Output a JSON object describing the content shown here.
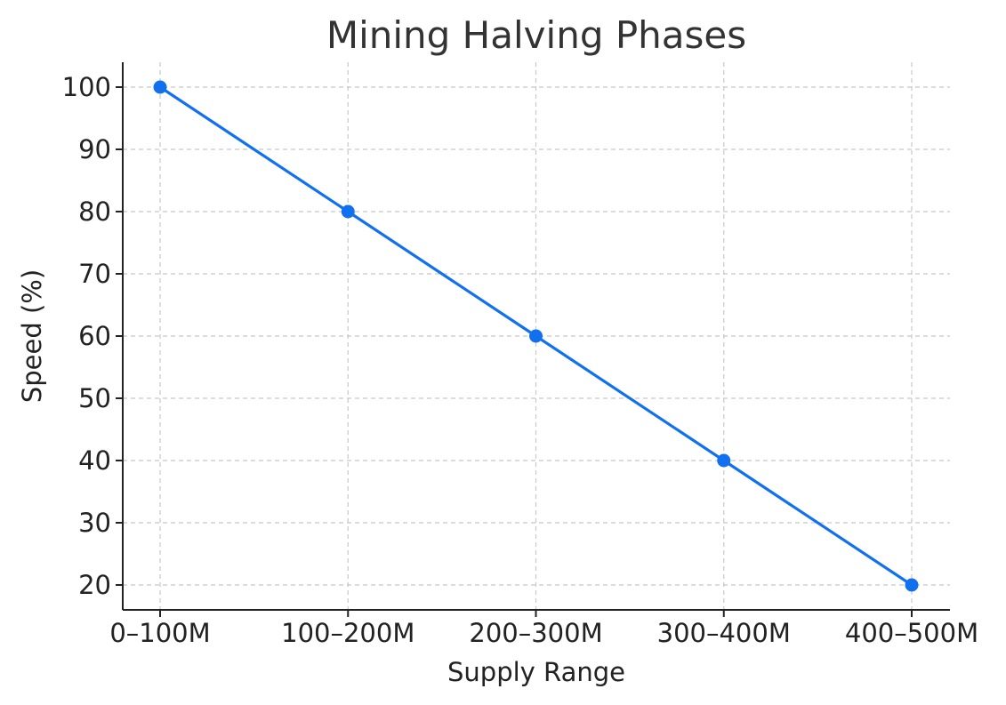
{
  "chart_data": {
    "type": "line",
    "title": "Mining Halving Phases",
    "xlabel": "Supply Range",
    "ylabel": "Speed (%)",
    "categories": [
      "0–100M",
      "100–200M",
      "200–300M",
      "300–400M",
      "400–500M"
    ],
    "series": [
      {
        "values": [
          100,
          80,
          60,
          40,
          20
        ],
        "color": "#1070F0"
      }
    ],
    "ylim": [
      16,
      104
    ],
    "yticks": [
      20,
      30,
      40,
      50,
      60,
      70,
      80,
      90,
      100
    ],
    "grid": true,
    "grid_style": "dashed"
  }
}
